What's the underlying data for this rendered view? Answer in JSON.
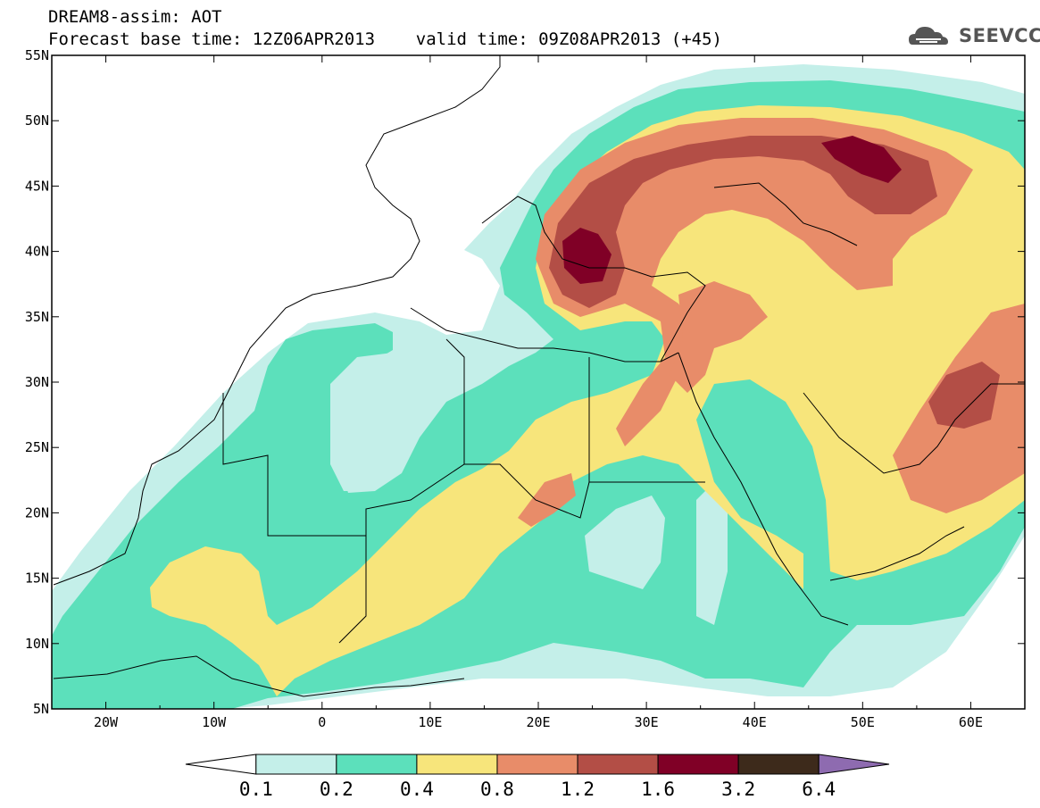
{
  "header": {
    "line1": "DREAM8-assim: AOT",
    "line2": "Forecast base time: 12Z06APR2013    valid time: 09Z08APR2013 (+45)"
  },
  "logo": {
    "text": "SEEVCCC",
    "icon": "cloud-icon"
  },
  "map": {
    "variable": "AOT",
    "lon_range": [
      -25,
      65
    ],
    "lat_range": [
      5,
      55
    ],
    "lat_labels": [
      "55N",
      "50N",
      "45N",
      "40N",
      "35N",
      "30N",
      "25N",
      "20N",
      "15N",
      "10N",
      "5N"
    ],
    "lon_labels": [
      "20W",
      "10W",
      "0",
      "10E",
      "20E",
      "30E",
      "40E",
      "50E",
      "60E"
    ]
  },
  "colorbar": {
    "labels": [
      "0.1",
      "0.2",
      "0.4",
      "0.8",
      "1.2",
      "1.6",
      "3.2",
      "6.4"
    ],
    "colors": [
      "#ffffff",
      "#c4efe9",
      "#5ce0bb",
      "#f7e57b",
      "#e88c69",
      "#b34e46",
      "#800026",
      "#3d2a1b",
      "#8e6bb0"
    ]
  },
  "colors": {
    "c1": "#c4efe9",
    "c2": "#5ce0bb",
    "c3": "#f7e57b",
    "c4": "#e88c69",
    "c5": "#b34e46",
    "c6": "#800026",
    "c7": "#3d2a1b"
  }
}
